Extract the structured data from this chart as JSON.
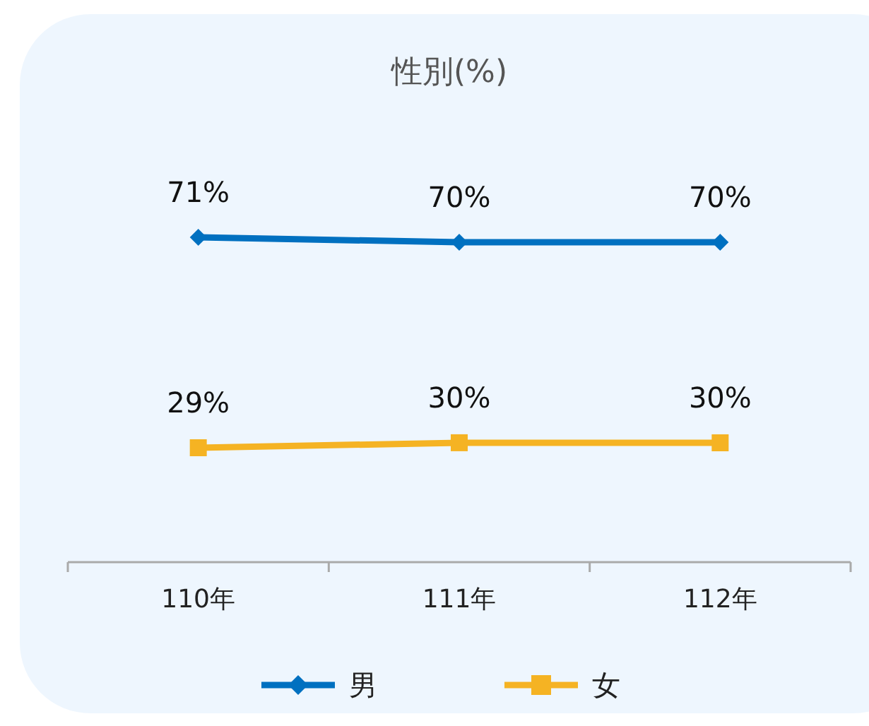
{
  "chart_data": {
    "type": "line",
    "title": "性別(%)",
    "categories": [
      "110年",
      "111年",
      "112年"
    ],
    "series": [
      {
        "name": "男",
        "color": "#0070c0",
        "marker": "diamond",
        "values": [
          71,
          70,
          70
        ],
        "value_labels": [
          "71%",
          "70%",
          "70%"
        ]
      },
      {
        "name": "女",
        "color": "#f5b323",
        "marker": "square",
        "values": [
          29,
          30,
          30
        ],
        "value_labels": [
          "29%",
          "30%",
          "30%"
        ]
      }
    ],
    "legend": "bottom"
  }
}
